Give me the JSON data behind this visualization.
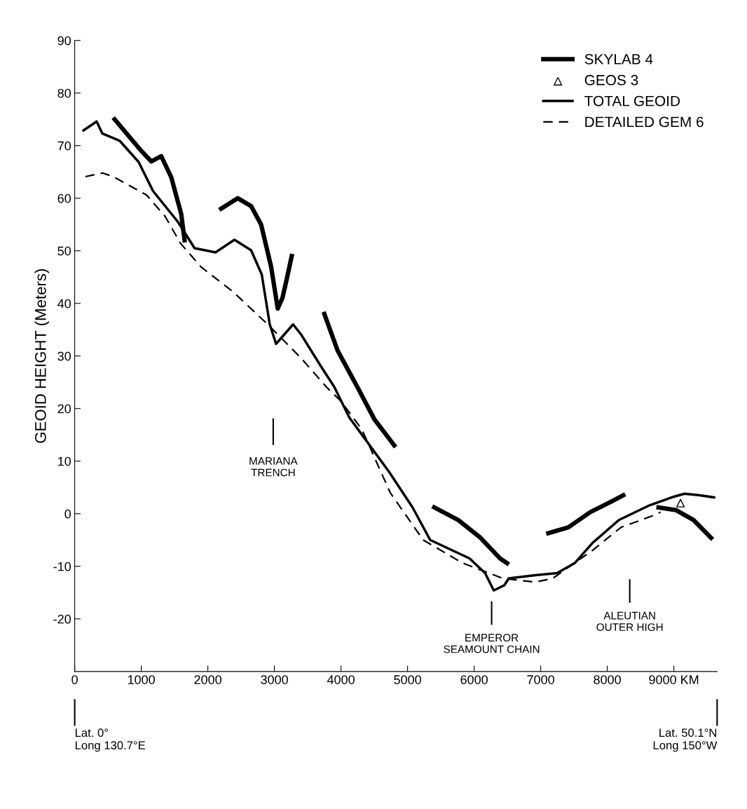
{
  "chart_data": {
    "type": "line",
    "ylabel": "GEOID HEIGHT (Meters)",
    "xlim": [
      0,
      9650
    ],
    "xticks": [
      0,
      1000,
      2000,
      3000,
      4000,
      5000,
      6000,
      7000,
      8000,
      {
        "value": 9000,
        "label": "9000 KM"
      }
    ],
    "ylim": [
      -30,
      90
    ],
    "yticks": [
      -20,
      -10,
      0,
      10,
      20,
      30,
      40,
      50,
      60,
      70,
      80,
      90
    ],
    "grid": false,
    "legend": "top right",
    "series": [
      {
        "name": "SKYLAB 4",
        "color": "#000000",
        "line_style": "solid",
        "marker": "none",
        "x": [
          600,
          800,
          1000,
          1150,
          1300,
          1450,
          1600,
          1650,
          1900,
          2200,
          2450,
          2650,
          2800,
          2950,
          3050,
          3120,
          3185,
          3260,
          3500,
          3750,
          3950,
          4250,
          4500,
          4800,
          5100,
          5400,
          5760,
          6090,
          6390,
          6495,
          6800,
          7115,
          7415,
          7745,
          8045,
          8240,
          8500,
          8770,
          9030,
          9295,
          9490,
          9560
        ],
        "values": [
          75,
          72,
          69,
          67,
          68,
          64,
          57,
          52,
          null,
          58,
          60,
          58.5,
          55,
          47,
          39,
          41,
          44.6,
          49,
          null,
          38,
          31,
          24,
          18,
          13,
          null,
          1.2,
          -1.2,
          -4.5,
          -8.5,
          -9.4,
          null,
          -3.7,
          -2.6,
          0.3,
          2.2,
          3.5,
          null,
          1.2,
          0.7,
          -1.2,
          -3.7,
          -4.6
        ]
      },
      {
        "name": "GEOS 3",
        "color": "#000000",
        "type": "scatter",
        "marker": "triangle",
        "x": [
          9100
        ],
        "values": [
          2
        ]
      },
      {
        "name": "TOTAL GEOID",
        "color": "#000000",
        "line_style": "solid",
        "marker": "none",
        "x": [
          132,
          330,
          415,
          677,
          960,
          1175,
          1550,
          1800,
          2115,
          2400,
          2650,
          2810,
          2930,
          3025,
          3280,
          3400,
          3710,
          3900,
          4125,
          4720,
          5075,
          5340,
          5930,
          6165,
          6295,
          6455,
          6520,
          6920,
          7245,
          7510,
          7775,
          8175,
          8635,
          8965,
          9160,
          9390,
          9605
        ],
        "values": [
          72.9,
          74.6,
          72.3,
          70.9,
          66.9,
          61.4,
          55.5,
          50.5,
          49.7,
          52.1,
          50.1,
          45.5,
          36.0,
          32.3,
          36.0,
          34.1,
          27.8,
          24.1,
          18.3,
          8,
          1.2,
          -5,
          -8.5,
          -11.3,
          -14.6,
          -13.6,
          -12.3,
          -11.7,
          -11.3,
          -9.4,
          -5.6,
          -1.2,
          1.6,
          3.1,
          3.8,
          3.5,
          3.1
        ]
      },
      {
        "name": "DETAILED GEM 6",
        "color": "#000000",
        "line_style": "dashed",
        "marker": "none",
        "x": [
          160,
          420,
          580,
          1080,
          1360,
          1590,
          1900,
          2370,
          2900,
          3400,
          3780,
          4000,
          4315,
          4740,
          5235,
          5830,
          6430,
          6920,
          7180,
          7775,
          8205,
          8700,
          8800
        ],
        "values": [
          64.1,
          64.8,
          64.1,
          60.6,
          56.5,
          51.4,
          46.9,
          42.3,
          36.0,
          29.6,
          24.1,
          21.4,
          16,
          4,
          -5,
          -9.4,
          -12.3,
          -13,
          -12.3,
          -7,
          -2.6,
          -0.3,
          0.3
        ]
      }
    ],
    "annotations": [
      "MARIANA\nTRENCH",
      "EMPEROR\nSEAMOUNT CHAIN",
      "ALEUTIAN\nOUTER HIGH",
      "Lat. 0°\nLong 130.7°E",
      "Lat. 50.1°N\nLong 150°W"
    ]
  }
}
